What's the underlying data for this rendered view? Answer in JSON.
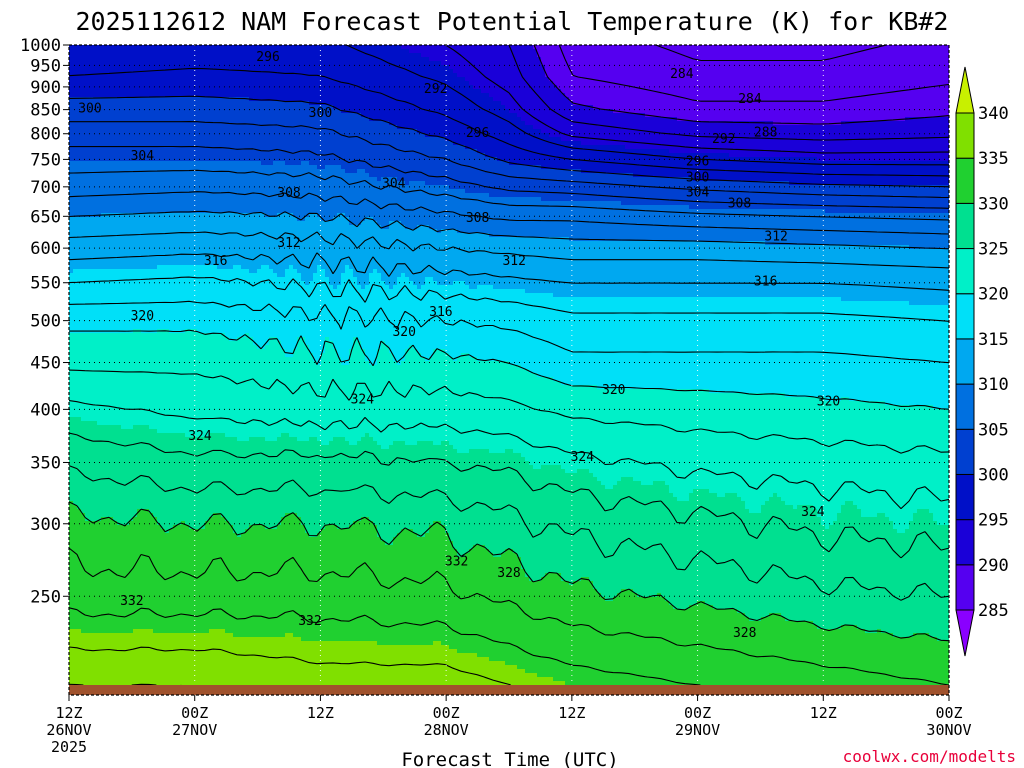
{
  "chart_data": {
    "type": "heatmap",
    "title": "2025112612 NAM Forecast Potential Temperature (K) for KB#2",
    "xlabel": "Forecast Time (UTC)",
    "ylabel": "",
    "credit": "coolwx.com/modelts",
    "units": "K",
    "x_range_hours": [
      0,
      84
    ],
    "y_range_hpa": [
      1000,
      200
    ],
    "x_ticks": [
      {
        "hour": 0,
        "lines": [
          "12Z",
          "26NOV",
          "2025"
        ]
      },
      {
        "hour": 12,
        "lines": [
          "00Z",
          "27NOV"
        ]
      },
      {
        "hour": 24,
        "lines": [
          "12Z"
        ]
      },
      {
        "hour": 36,
        "lines": [
          "00Z",
          "28NOV"
        ]
      },
      {
        "hour": 48,
        "lines": [
          "12Z"
        ]
      },
      {
        "hour": 60,
        "lines": [
          "00Z",
          "29NOV"
        ]
      },
      {
        "hour": 72,
        "lines": [
          "12Z"
        ]
      },
      {
        "hour": 84,
        "lines": [
          "00Z",
          "30NOV"
        ]
      }
    ],
    "y_ticks": [
      250,
      300,
      350,
      400,
      450,
      500,
      550,
      600,
      650,
      700,
      750,
      800,
      850,
      900,
      950,
      1000
    ],
    "colorbar": {
      "levels": [
        285,
        290,
        295,
        300,
        305,
        310,
        315,
        320,
        325,
        330,
        335,
        340
      ],
      "colors": [
        "#8a00ff",
        "#5500f0",
        "#1a00d8",
        "#0010c8",
        "#0040d0",
        "#0070e0",
        "#00a8f0",
        "#00e0f8",
        "#00f0c8",
        "#00e090",
        "#20d030",
        "#80e000",
        "#c8f000"
      ]
    },
    "contour_labels": [
      {
        "value": "332",
        "hour": 6.0,
        "p": 247
      },
      {
        "value": "332",
        "hour": 23.0,
        "p": 235
      },
      {
        "value": "332",
        "hour": 37.0,
        "p": 273
      },
      {
        "value": "328",
        "hour": 42.0,
        "p": 265
      },
      {
        "value": "328",
        "hour": 64.5,
        "p": 228
      },
      {
        "value": "324",
        "hour": 12.5,
        "p": 374
      },
      {
        "value": "324",
        "hour": 28.0,
        "p": 410
      },
      {
        "value": "324",
        "hour": 49.0,
        "p": 355
      },
      {
        "value": "324",
        "hour": 71.0,
        "p": 309
      },
      {
        "value": "320",
        "hour": 7.0,
        "p": 506
      },
      {
        "value": "320",
        "hour": 32.0,
        "p": 486
      },
      {
        "value": "320",
        "hour": 52.0,
        "p": 420
      },
      {
        "value": "320",
        "hour": 72.5,
        "p": 408
      },
      {
        "value": "316",
        "hour": 14.0,
        "p": 581
      },
      {
        "value": "316",
        "hour": 35.5,
        "p": 511
      },
      {
        "value": "316",
        "hour": 66.5,
        "p": 552
      },
      {
        "value": "312",
        "hour": 21.0,
        "p": 608
      },
      {
        "value": "312",
        "hour": 42.5,
        "p": 581
      },
      {
        "value": "312",
        "hour": 67.5,
        "p": 618
      },
      {
        "value": "308",
        "hour": 21.0,
        "p": 689
      },
      {
        "value": "308",
        "hour": 39.0,
        "p": 647
      },
      {
        "value": "308",
        "hour": 64.0,
        "p": 671
      },
      {
        "value": "304",
        "hour": 7.0,
        "p": 756
      },
      {
        "value": "304",
        "hour": 31.0,
        "p": 706
      },
      {
        "value": "304",
        "hour": 60.0,
        "p": 690
      },
      {
        "value": "300",
        "hour": 2.0,
        "p": 852
      },
      {
        "value": "300",
        "hour": 24.0,
        "p": 843
      },
      {
        "value": "300",
        "hour": 60.0,
        "p": 717
      },
      {
        "value": "296",
        "hour": 19.0,
        "p": 970
      },
      {
        "value": "296",
        "hour": 39.0,
        "p": 801
      },
      {
        "value": "296",
        "hour": 60.0,
        "p": 746
      },
      {
        "value": "292",
        "hour": 35.0,
        "p": 895
      },
      {
        "value": "292",
        "hour": 62.5,
        "p": 789
      },
      {
        "value": "288",
        "hour": 66.5,
        "p": 802
      },
      {
        "value": "284",
        "hour": 65.0,
        "p": 873
      },
      {
        "value": "284",
        "hour": 58.5,
        "p": 930
      }
    ],
    "field_columns": [
      {
        "hour": 0,
        "theta": {
          "1000": 296,
          "925": 298,
          "850": 301,
          "800": 303,
          "750": 305,
          "700": 307,
          "650": 310,
          "600": 313,
          "550": 316,
          "500": 319.5,
          "450": 321.5,
          "400": 324.5,
          "350": 327.5,
          "300": 330.5,
          "250": 333,
          "200": 338
        }
      },
      {
        "hour": 12,
        "theta": {
          "1000": 296.5,
          "925": 298.5,
          "850": 301,
          "800": 303,
          "750": 305,
          "700": 307.5,
          "650": 310.5,
          "600": 313.5,
          "550": 316.5,
          "500": 319.5,
          "450": 321.5,
          "400": 323.5,
          "350": 326.5,
          "300": 330,
          "250": 333,
          "200": 338
        }
      },
      {
        "hour": 24,
        "theta": {
          "1000": 296.5,
          "925": 298,
          "850": 300.5,
          "800": 302.5,
          "750": 304.5,
          "700": 307,
          "650": 310,
          "600": 313,
          "550": 315.5,
          "500": 318.5,
          "450": 320.5,
          "400": 323,
          "350": 326.5,
          "300": 330,
          "250": 333,
          "200": 337
        }
      },
      {
        "hour": 36,
        "theta": {
          "1000": 294,
          "925": 295.5,
          "850": 297.5,
          "800": 299.5,
          "750": 302,
          "700": 305,
          "650": 308.5,
          "600": 312,
          "550": 315,
          "500": 318,
          "450": 320.5,
          "400": 323,
          "350": 326,
          "300": 329.5,
          "250": 332.5,
          "200": 337
        }
      },
      {
        "hour": 42,
        "theta": {
          "1000": 292,
          "925": 293,
          "850": 295,
          "800": 297,
          "750": 299.5,
          "700": 303.5,
          "650": 307.5,
          "600": 311.5,
          "550": 314.5,
          "500": 317.5,
          "450": 320,
          "400": 322.5,
          "350": 325.5,
          "300": 328.5,
          "250": 331.5,
          "200": 336
        }
      },
      {
        "hour": 48,
        "theta": {
          "1000": 287,
          "925": 288,
          "850": 290.5,
          "800": 293.5,
          "750": 298,
          "700": 303,
          "650": 307.5,
          "600": 311,
          "550": 314,
          "500": 316.5,
          "450": 318.5,
          "400": 321.5,
          "350": 324.5,
          "300": 327.5,
          "250": 330.5,
          "200": 335
        }
      },
      {
        "hour": 60,
        "theta": {
          "1000": 285.5,
          "925": 286.5,
          "850": 288.5,
          "800": 291.5,
          "750": 296,
          "700": 301.5,
          "650": 306.5,
          "600": 311,
          "550": 314,
          "500": 316.5,
          "450": 318.5,
          "400": 321,
          "350": 323.5,
          "300": 326.5,
          "250": 329.5,
          "200": 334
        }
      },
      {
        "hour": 72,
        "theta": {
          "1000": 285.5,
          "925": 286.5,
          "850": 288.5,
          "800": 291,
          "750": 295,
          "700": 300.5,
          "650": 306,
          "600": 310.5,
          "550": 314,
          "500": 316.5,
          "450": 318.5,
          "400": 320.5,
          "350": 323,
          "300": 325.5,
          "250": 328.5,
          "200": 333
        }
      },
      {
        "hour": 84,
        "theta": {
          "1000": 286.5,
          "925": 287.5,
          "850": 289.5,
          "800": 291.5,
          "750": 295,
          "700": 300,
          "650": 305.5,
          "600": 310,
          "550": 313.5,
          "500": 316,
          "450": 318,
          "400": 320,
          "350": 322.5,
          "300": 325,
          "250": 328,
          "200": 332
        }
      }
    ]
  },
  "colors": {
    "ground": "#a0522d",
    "credit": "#e8003a",
    "contour": "#000000",
    "frame": "#000000"
  }
}
